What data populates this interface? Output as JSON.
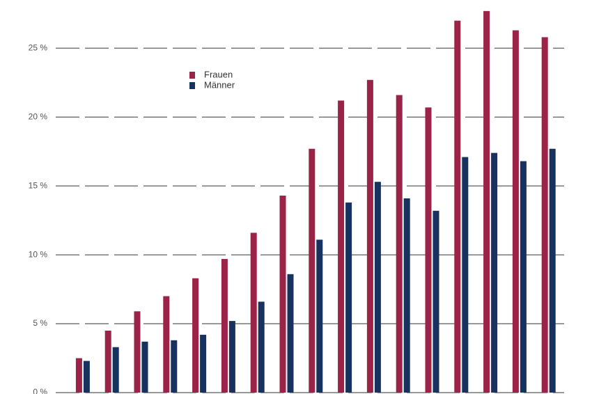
{
  "chart_data": {
    "type": "bar",
    "categories": [
      null,
      null,
      null,
      null,
      null,
      null,
      null,
      null,
      null,
      null,
      null,
      null,
      null,
      null,
      null,
      null,
      null
    ],
    "series": [
      {
        "name": "Frauen",
        "color": "#9b2348",
        "values": [
          2.5,
          4.5,
          5.9,
          7.0,
          8.3,
          9.7,
          11.6,
          14.3,
          17.7,
          21.2,
          22.7,
          21.6,
          20.7,
          27.0,
          27.7,
          26.3,
          25.8
        ]
      },
      {
        "name": "Männer",
        "color": "#17325e",
        "values": [
          2.3,
          3.3,
          3.7,
          3.8,
          4.2,
          5.2,
          6.6,
          8.6,
          11.1,
          13.8,
          15.3,
          14.1,
          13.2,
          17.1,
          17.4,
          16.8,
          17.7
        ]
      }
    ],
    "ylim": [
      0,
      28.5
    ],
    "yticks": [
      {
        "value": 0,
        "label": "0 %"
      },
      {
        "value": 5,
        "label": "5 %"
      },
      {
        "value": 10,
        "label": "10 %"
      },
      {
        "value": 15,
        "label": "15 %"
      },
      {
        "value": 20,
        "label": "20 %"
      },
      {
        "value": 25,
        "label": "25 %"
      }
    ],
    "grid": true,
    "legend": "top-left"
  }
}
